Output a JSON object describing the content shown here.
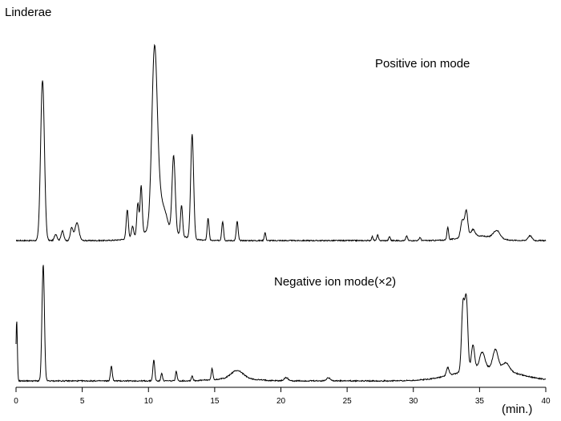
{
  "chart_data": {
    "type": "line",
    "title": "Linderae",
    "xlabel": "(min.)",
    "ylabel": "",
    "xlim": [
      0,
      40
    ],
    "x_ticks": [
      0,
      5,
      10,
      15,
      20,
      25,
      30,
      35,
      40
    ],
    "grid": false,
    "legend": "none",
    "series": [
      {
        "name": "Positive ion mode",
        "baseline": 0,
        "peaks": [
          [
            2.0,
            200,
            0.14
          ],
          [
            3.0,
            8,
            0.1
          ],
          [
            3.5,
            12,
            0.1
          ],
          [
            4.2,
            16,
            0.1
          ],
          [
            4.6,
            22,
            0.15
          ],
          [
            8.4,
            36,
            0.08
          ],
          [
            8.8,
            14,
            0.08
          ],
          [
            9.2,
            40,
            0.08
          ],
          [
            9.45,
            60,
            0.08
          ],
          [
            10.45,
            210,
            0.2
          ],
          [
            10.8,
            40,
            0.3
          ],
          [
            11.3,
            12,
            0.2
          ],
          [
            11.9,
            96,
            0.12
          ],
          [
            12.5,
            38,
            0.08
          ],
          [
            13.3,
            130,
            0.11
          ],
          [
            14.5,
            28,
            0.07
          ],
          [
            15.6,
            24,
            0.07
          ],
          [
            16.7,
            24,
            0.07
          ],
          [
            18.8,
            10,
            0.06
          ],
          [
            26.9,
            5,
            0.06
          ],
          [
            27.3,
            7,
            0.06
          ],
          [
            28.2,
            5,
            0.06
          ],
          [
            29.5,
            6,
            0.06
          ],
          [
            30.5,
            4,
            0.06
          ],
          [
            32.6,
            16,
            0.06
          ],
          [
            33.7,
            22,
            0.12
          ],
          [
            34.0,
            32,
            0.11
          ],
          [
            34.5,
            8,
            0.15
          ],
          [
            36.3,
            10,
            0.25
          ],
          [
            38.8,
            6,
            0.15
          ]
        ],
        "humps": [
          [
            10.8,
            14,
            1.3
          ],
          [
            34.8,
            6,
            1.2
          ]
        ],
        "noise": 1.3,
        "color": "#000000"
      },
      {
        "name": "Negative ion mode(×2)",
        "baseline": 0,
        "peaks": [
          [
            0.05,
            75,
            0.05
          ],
          [
            2.05,
            145,
            0.09
          ],
          [
            7.2,
            18,
            0.07
          ],
          [
            10.4,
            26,
            0.07
          ],
          [
            11.0,
            10,
            0.06
          ],
          [
            12.1,
            12,
            0.06
          ],
          [
            13.3,
            6,
            0.06
          ],
          [
            14.8,
            14,
            0.06
          ],
          [
            16.7,
            10,
            0.45
          ],
          [
            20.4,
            4,
            0.15
          ],
          [
            23.6,
            4,
            0.15
          ],
          [
            32.6,
            10,
            0.1
          ],
          [
            33.75,
            82,
            0.11
          ],
          [
            34.0,
            88,
            0.11
          ],
          [
            34.5,
            30,
            0.12
          ],
          [
            35.2,
            20,
            0.2
          ],
          [
            36.2,
            24,
            0.2
          ],
          [
            37.0,
            10,
            0.25
          ]
        ],
        "humps": [
          [
            35.5,
            16,
            2.2
          ],
          [
            16.5,
            3,
            1.5
          ]
        ],
        "noise": 1.4,
        "color": "#000000"
      }
    ]
  }
}
